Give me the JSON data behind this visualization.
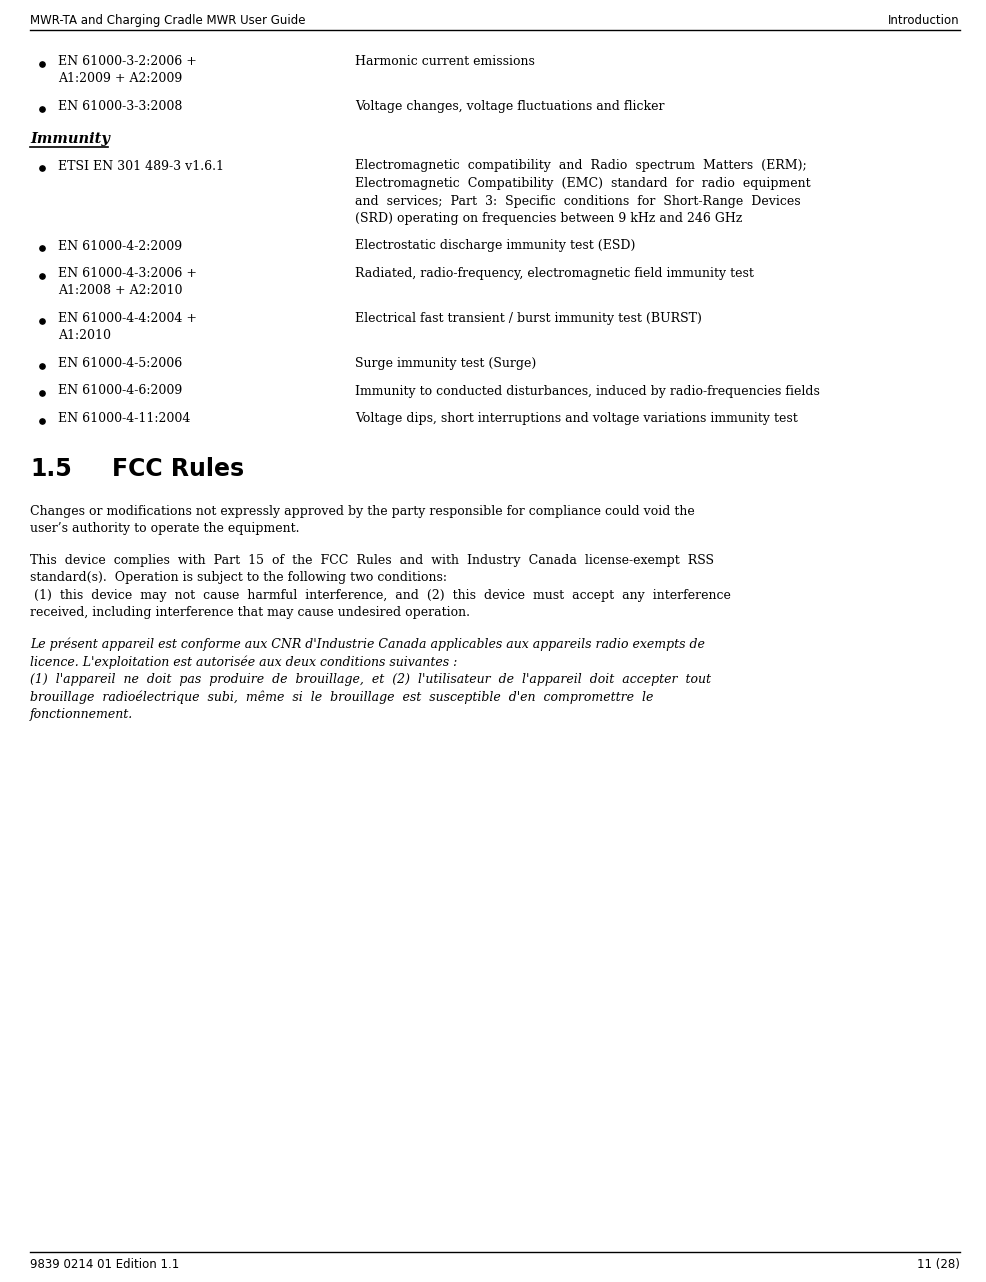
{
  "header_left": "MWR-TA and Charging Cradle MWR User Guide",
  "header_right": "Introduction",
  "footer_left": "9839 0214 01 Edition 1.1",
  "footer_right": "11 (28)",
  "background_color": "#ffffff",
  "text_color": "#000000",
  "header_fontsize": 8.5,
  "body_fontsize": 9.0,
  "fcc_heading_fontsize": 17,
  "immunity_fontsize": 10.5,
  "section_title": "Immunity",
  "bullet_items": [
    {
      "label": "EN 61000-3-2:2006 +\nA1:2009 + A2:2009",
      "description": "Harmonic current emissions",
      "label_lines": 2,
      "desc_lines": 1
    },
    {
      "label": "EN 61000-3-3:2008",
      "description": "Voltage changes, voltage fluctuations and flicker",
      "label_lines": 1,
      "desc_lines": 1
    },
    {
      "label": "ETSI EN 301 489-3 v1.6.1",
      "description": "Electromagnetic  compatibility  and  Radio  spectrum  Matters  (ERM);\nElectromagnetic  Compatibility  (EMC)  standard  for  radio  equipment\nand  services;  Part  3:  Specific  conditions  for  Short-Range  Devices\n(SRD) operating on frequencies between 9 kHz and 246 GHz",
      "label_lines": 1,
      "desc_lines": 4
    },
    {
      "label": "EN 61000-4-2:2009",
      "description": "Electrostatic discharge immunity test (ESD)",
      "label_lines": 1,
      "desc_lines": 1
    },
    {
      "label": "EN 61000-4-3:2006 +\nA1:2008 + A2:2010",
      "description": "Radiated, radio-frequency, electromagnetic field immunity test",
      "label_lines": 2,
      "desc_lines": 1
    },
    {
      "label": "EN 61000-4-4:2004 +\nA1:2010",
      "description": "Electrical fast transient / burst immunity test (BURST)",
      "label_lines": 2,
      "desc_lines": 1
    },
    {
      "label": "EN 61000-4-5:2006",
      "description": "Surge immunity test (Surge)",
      "label_lines": 1,
      "desc_lines": 1
    },
    {
      "label": "EN 61000-4-6:2009",
      "description": "Immunity to conducted disturbances, induced by radio-frequencies fields",
      "label_lines": 1,
      "desc_lines": 1
    },
    {
      "label": "EN 61000-4-11:2004",
      "description": "Voltage dips, short interruptions and voltage variations immunity test",
      "label_lines": 1,
      "desc_lines": 1
    }
  ],
  "fcc_para1_lines": [
    "Changes or modifications not expressly approved by the party responsible for compliance could void the",
    "user’s authority to operate the equipment."
  ],
  "fcc_para2_lines": [
    "This  device  complies  with  Part  15  of  the  FCC  Rules  and  with  Industry  Canada  license-exempt  RSS",
    "standard(s).  Operation is subject to the following two conditions:",
    " (1)  this  device  may  not  cause  harmful  interference,  and  (2)  this  device  must  accept  any  interference",
    "received, including interference that may cause undesired operation."
  ],
  "fcc_para3_lines": [
    "Le présent appareil est conforme aux CNR d'Industrie Canada applicables aux appareils radio exempts de",
    "licence. L'exploitation est autorisée aux deux conditions suivantes :",
    "(1)  l'appareil  ne  doit  pas  produire  de  brouillage,  et  (2)  l'utilisateur  de  l'appareil  doit  accepter  tout",
    "brouillage  radioélectrique  subi,  même  si  le  brouillage  est  susceptible  d'en  compromettre  le",
    "fonctionnement."
  ]
}
